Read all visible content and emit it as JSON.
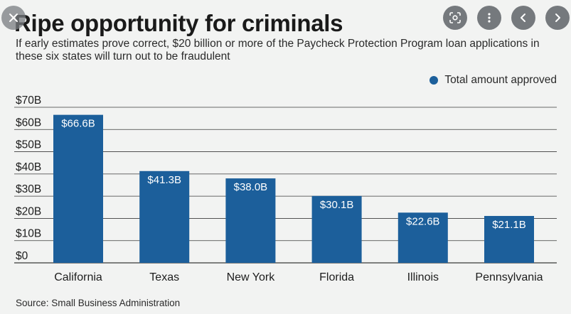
{
  "overlay": {
    "close_icon": "close-icon",
    "lens_icon": "lens-icon",
    "more_icon": "more-vertical-icon",
    "prev_icon": "chevron-left-icon",
    "next_icon": "chevron-right-icon"
  },
  "colors": {
    "bar": "#1c5f9b",
    "grid": "#3a3a3a",
    "background": "#f2f3f2"
  },
  "chart_data": {
    "type": "bar",
    "title": "Ripe opportunity for criminals",
    "subtitle": "If early estimates prove correct, $20 billion or more of the Paycheck Protection Program loan applications in these six states will turn out to be fraudulent",
    "categories": [
      "California",
      "Texas",
      "New York",
      "Florida",
      "Illinois",
      "Pennsylvania"
    ],
    "series": [
      {
        "name": "Total amount approved",
        "values": [
          66.6,
          41.3,
          38.0,
          30.1,
          22.6,
          21.1
        ],
        "labels": [
          "$66.6B",
          "$41.3B",
          "$38.0B",
          "$30.1B",
          "$22.6B",
          "$21.1B"
        ]
      }
    ],
    "yticks": [
      0,
      10,
      20,
      30,
      40,
      50,
      60,
      70
    ],
    "ytick_labels": [
      "$0",
      "$10B",
      "$20B",
      "$30B",
      "$40B",
      "$50B",
      "$60B",
      "$70B"
    ],
    "ylim": [
      0,
      70
    ],
    "xlabel": "",
    "ylabel": "",
    "grid": true,
    "legend_position": "top-right",
    "source": "Source: Small Business Administration"
  }
}
